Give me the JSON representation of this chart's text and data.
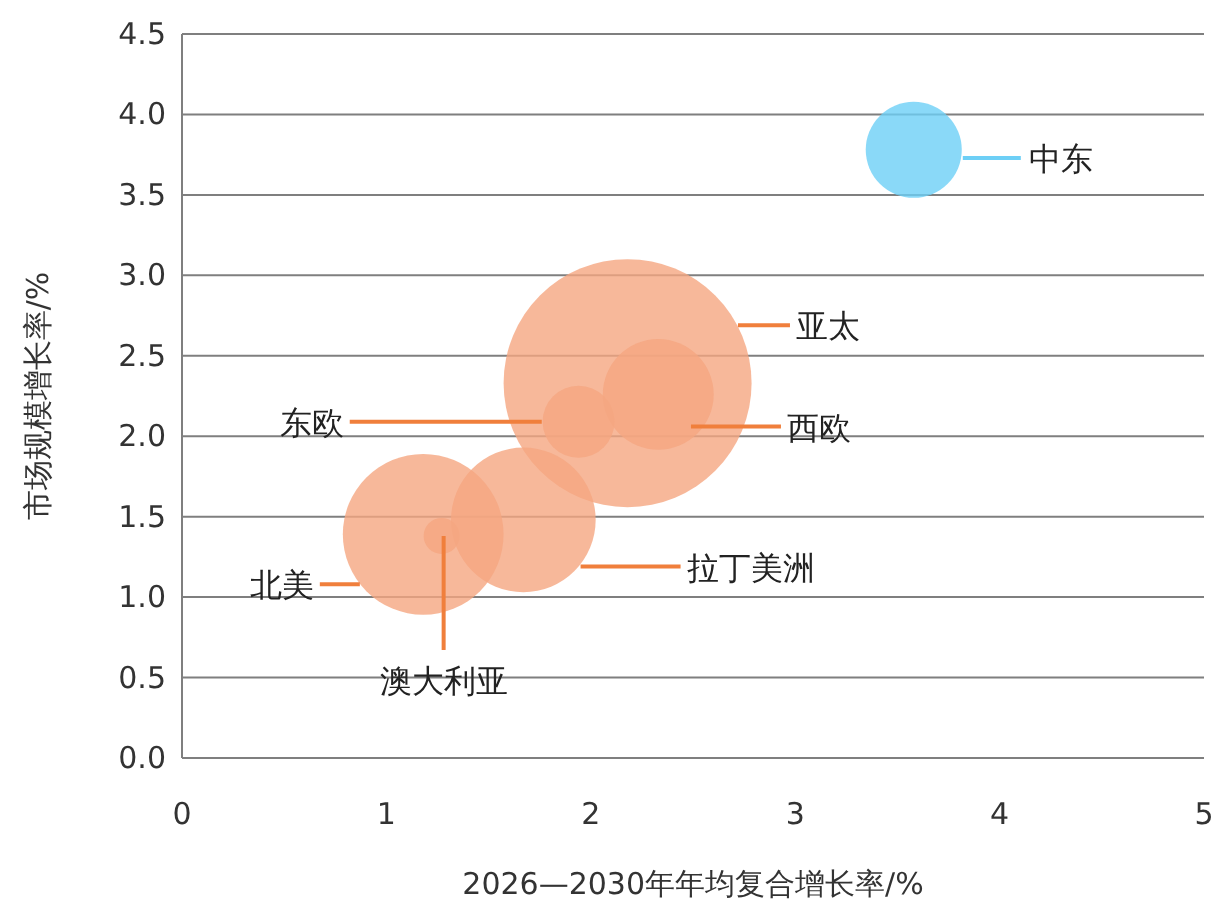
{
  "chart_data": {
    "type": "bubble",
    "xlabel": "2026—2030年年均复合增长率/%",
    "ylabel": "市场规模增长率/%",
    "x": [
      3.58,
      2.18,
      2.33,
      1.94,
      1.67,
      1.18,
      1.27
    ],
    "values": [
      3.78,
      2.33,
      2.26,
      2.09,
      1.48,
      1.39,
      1.38
    ],
    "sizes": [
      0.15,
      1,
      0.2,
      0.084,
      0.34,
      0.42,
      0.021
    ],
    "colors": [
      "#6dcff6",
      "#f5a681",
      "#f5a681",
      "#f5a681",
      "#f5a681",
      "#f5a681",
      "#f5a681"
    ],
    "annotations": [
      {
        "text": "中东",
        "x": 3.82,
        "y": 3.73
      },
      {
        "text": "亚太",
        "x": 2.72,
        "y": 2.69
      },
      {
        "text": "西欧",
        "x": 2.49,
        "y": 2.06
      },
      {
        "text": "东欧",
        "x": 1.76,
        "y": 2.09
      },
      {
        "text": "拉丁美洲",
        "x": 1.95,
        "y": 1.19
      },
      {
        "text": "北美",
        "x": 0.87,
        "y": 1.08
      },
      {
        "text": "澳大利亚",
        "x": 1.28,
        "y": 1.38
      }
    ],
    "xlim": [
      0,
      5
    ],
    "xticks": [
      0,
      1,
      2,
      3,
      4,
      5
    ],
    "ylim": [
      0,
      4.5
    ],
    "yticks": [
      {
        "value": 0,
        "label": "0.0"
      },
      {
        "value": 0.5,
        "label": "0.5"
      },
      {
        "value": 1,
        "label": "1.0"
      },
      {
        "value": 1.5,
        "label": "1.5"
      },
      {
        "value": 2,
        "label": "2.0"
      },
      {
        "value": 2.5,
        "label": "2.5"
      },
      {
        "value": 3,
        "label": "3.0"
      },
      {
        "value": 3.5,
        "label": "3.5"
      },
      {
        "value": 4,
        "label": "4.0"
      },
      {
        "value": 4.5,
        "label": "4.5"
      }
    ],
    "grid": "y",
    "marker": "circle"
  }
}
